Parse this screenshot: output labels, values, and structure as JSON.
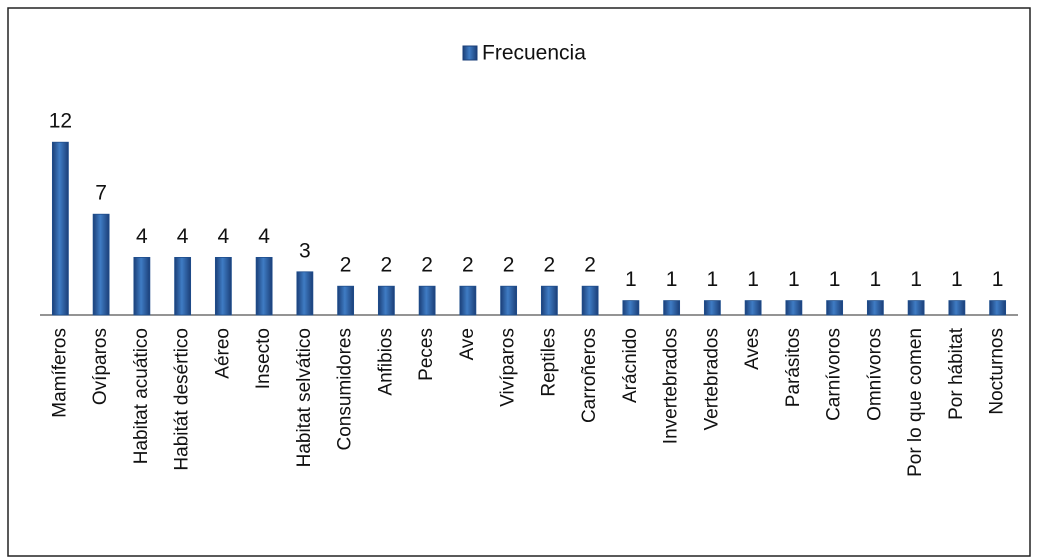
{
  "chart_data": {
    "type": "bar",
    "categories": [
      "Mamíferos",
      "Ovíparos",
      "Habitat acuático",
      "Habitát desértico",
      "Aéreo",
      "Insecto",
      "Habitat selvático",
      "Consumidores",
      "Anfibios",
      "Peces",
      "Ave",
      "Vivíparos",
      "Reptiles",
      "Carroñeros",
      "Arácnido",
      "Invertebrados",
      "Vertebrados",
      "Aves",
      "Parásitos",
      "Carnívoros",
      "Omnívoros",
      "Por lo que comen",
      "Por hábitat",
      "Nocturnos"
    ],
    "series": [
      {
        "name": "Frecuencia",
        "color": "#1f4e8c",
        "values": [
          12,
          7,
          4,
          4,
          4,
          4,
          3,
          2,
          2,
          2,
          2,
          2,
          2,
          2,
          1,
          1,
          1,
          1,
          1,
          1,
          1,
          1,
          1,
          1
        ]
      }
    ]
  }
}
